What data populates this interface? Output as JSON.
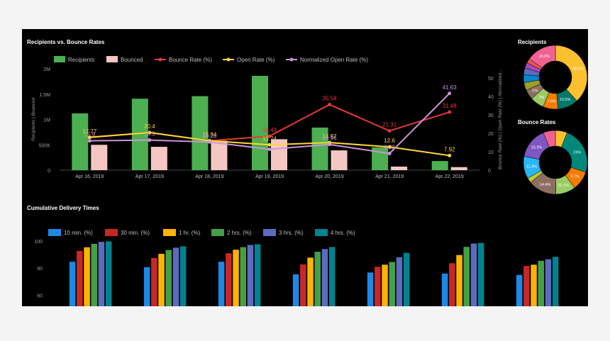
{
  "panels": {
    "recipients_vs_bounce": "Recipients vs. Bounce Rates",
    "recipients_donut": "Recipients",
    "bounce_donut": "Bounce Rates",
    "delivery_times": "Cumulative Delivery Times"
  },
  "chart_data": [
    {
      "type": "bar",
      "title": "Recipients vs. Bounce Rates",
      "categories": [
        "Apr 16, 2019",
        "Apr 17, 2019",
        "Apr 18, 2019",
        "Apr 19, 2019",
        "Apr 20, 2019",
        "Apr 21, 2019",
        "Apr 22, 2019"
      ],
      "ylabel": "Recipients | Bounced",
      "ylabel_right": "Bounce Rate (%) | Open Rate (%) | Normalized...",
      "ylim": [
        0,
        2000000
      ],
      "yticks": [
        "0",
        "500K",
        "1M",
        "1.5M",
        "2M"
      ],
      "ylim_right": [
        0,
        55
      ],
      "yticks_right": [
        "0",
        "10",
        "20",
        "30",
        "40",
        "50"
      ],
      "legend_position": "top",
      "series": [
        {
          "name": "Recipients",
          "kind": "bar",
          "color": "#4caf50",
          "values": [
            1120000,
            1410000,
            1460000,
            1860000,
            840000,
            450000,
            180000
          ]
        },
        {
          "name": "Bounced",
          "kind": "bar",
          "color": "#f4c7c3",
          "values": [
            500000,
            460000,
            580000,
            610000,
            390000,
            70000,
            60000
          ]
        },
        {
          "name": "Bounce Rate (%)",
          "kind": "line",
          "color": "#e53935",
          "values": [
            17.9,
            20.4,
            15.94,
            18.43,
            35.58,
            21.31,
            31.48
          ],
          "labels": [
            "",
            "",
            "",
            "18.43",
            "35.58",
            "21.31",
            "31.48"
          ]
        },
        {
          "name": "Open Rate (%)",
          "kind": "line",
          "color": "#fdd835",
          "values": [
            17.77,
            20.4,
            15.94,
            13.74,
            14.97,
            12.6,
            7.92
          ],
          "labels": [
            "17.77",
            "20.4",
            "15.94",
            "13.74",
            "14.97",
            "12.6",
            "7.92"
          ]
        },
        {
          "name": "Normalized Open Rate (%)",
          "kind": "line",
          "color": "#ce93d8",
          "values": [
            15.9,
            16.3,
            15.28,
            11.3,
            13.96,
            9.02,
            41.63
          ],
          "labels": [
            "15.9",
            "16.3",
            "15.28",
            "",
            "13.96",
            "9.02",
            "41.63"
          ]
        }
      ]
    },
    {
      "type": "pie",
      "title": "Recipients",
      "donut": true,
      "slices": [
        {
          "value": 38.2,
          "label": "38.2%",
          "color": "#fbc02d"
        },
        {
          "value": 10.5,
          "label": "10.5%",
          "color": "#00796b"
        },
        {
          "value": 7.6,
          "label": "7.6%",
          "color": "#f57c00"
        },
        {
          "value": 7,
          "label": "7%",
          "color": "#9ccc65"
        },
        {
          "value": 5,
          "label": "5%",
          "color": "#8d6e63"
        },
        {
          "value": 4,
          "label": "",
          "color": "#9e9d24"
        },
        {
          "value": 4,
          "label": "",
          "color": "#0288d1"
        },
        {
          "value": 3.5,
          "label": "",
          "color": "#5c6bc0"
        },
        {
          "value": 2.7,
          "label": "",
          "color": "#ab47bc"
        },
        {
          "value": 2.3,
          "label": "",
          "color": "#ef5350"
        },
        {
          "value": 15.2,
          "label": "15.2%",
          "color": "#f06292"
        }
      ]
    },
    {
      "type": "pie",
      "title": "Bounce Rates",
      "donut": true,
      "slices": [
        {
          "value": 6,
          "label": "",
          "color": "#fbc02d"
        },
        {
          "value": 24,
          "label": "24%",
          "color": "#00897b"
        },
        {
          "value": 9.7,
          "label": "9.7%",
          "color": "#f57c00"
        },
        {
          "value": 10.1,
          "label": "10.1%",
          "color": "#9ccc65"
        },
        {
          "value": 14.4,
          "label": "14.4%",
          "color": "#8d6e63"
        },
        {
          "value": 2.5,
          "label": "",
          "color": "#c0ca33"
        },
        {
          "value": 11.3,
          "label": "11.3%",
          "color": "#29b6f6"
        },
        {
          "value": 15.9,
          "label": "15.9%",
          "color": "#7e57c2"
        },
        {
          "value": 6.1,
          "label": "",
          "color": "#f06292"
        }
      ]
    },
    {
      "type": "bar",
      "title": "Cumulative Delivery Times",
      "categories": [
        "",
        "",
        "",
        "",
        "",
        "",
        ""
      ],
      "ylim": [
        52,
        103
      ],
      "yticks": [
        "60",
        "80",
        "100"
      ],
      "legend_position": "top",
      "series": [
        {
          "name": "10 min. (%)",
          "color": "#1e88e5",
          "values": [
            84.7,
            80.7,
            84.7,
            75.5,
            76.8,
            76,
            75
          ]
        },
        {
          "name": "30 min. (%)",
          "color": "#c62828",
          "values": [
            92.6,
            87.5,
            90.9,
            82.7,
            81,
            83.6,
            81.6
          ]
        },
        {
          "name": "1 hr. (%)",
          "color": "#ffb300",
          "values": [
            95.3,
            90.5,
            93.5,
            87.7,
            82.5,
            89.6,
            82.5
          ]
        },
        {
          "name": "2 hrs. (%)",
          "color": "#43a047",
          "values": [
            97.8,
            93.3,
            95.4,
            92,
            84.5,
            95.6,
            85.4
          ]
        },
        {
          "name": "3 hrs. (%)",
          "color": "#5c6bc0",
          "values": [
            99.3,
            95,
            97,
            94,
            88,
            98,
            86.5
          ]
        },
        {
          "name": "4 hrs. (%)",
          "color": "#00838f",
          "values": [
            99.6,
            96,
            97.5,
            95.5,
            91.2,
            98.5,
            88.3
          ]
        }
      ]
    }
  ]
}
